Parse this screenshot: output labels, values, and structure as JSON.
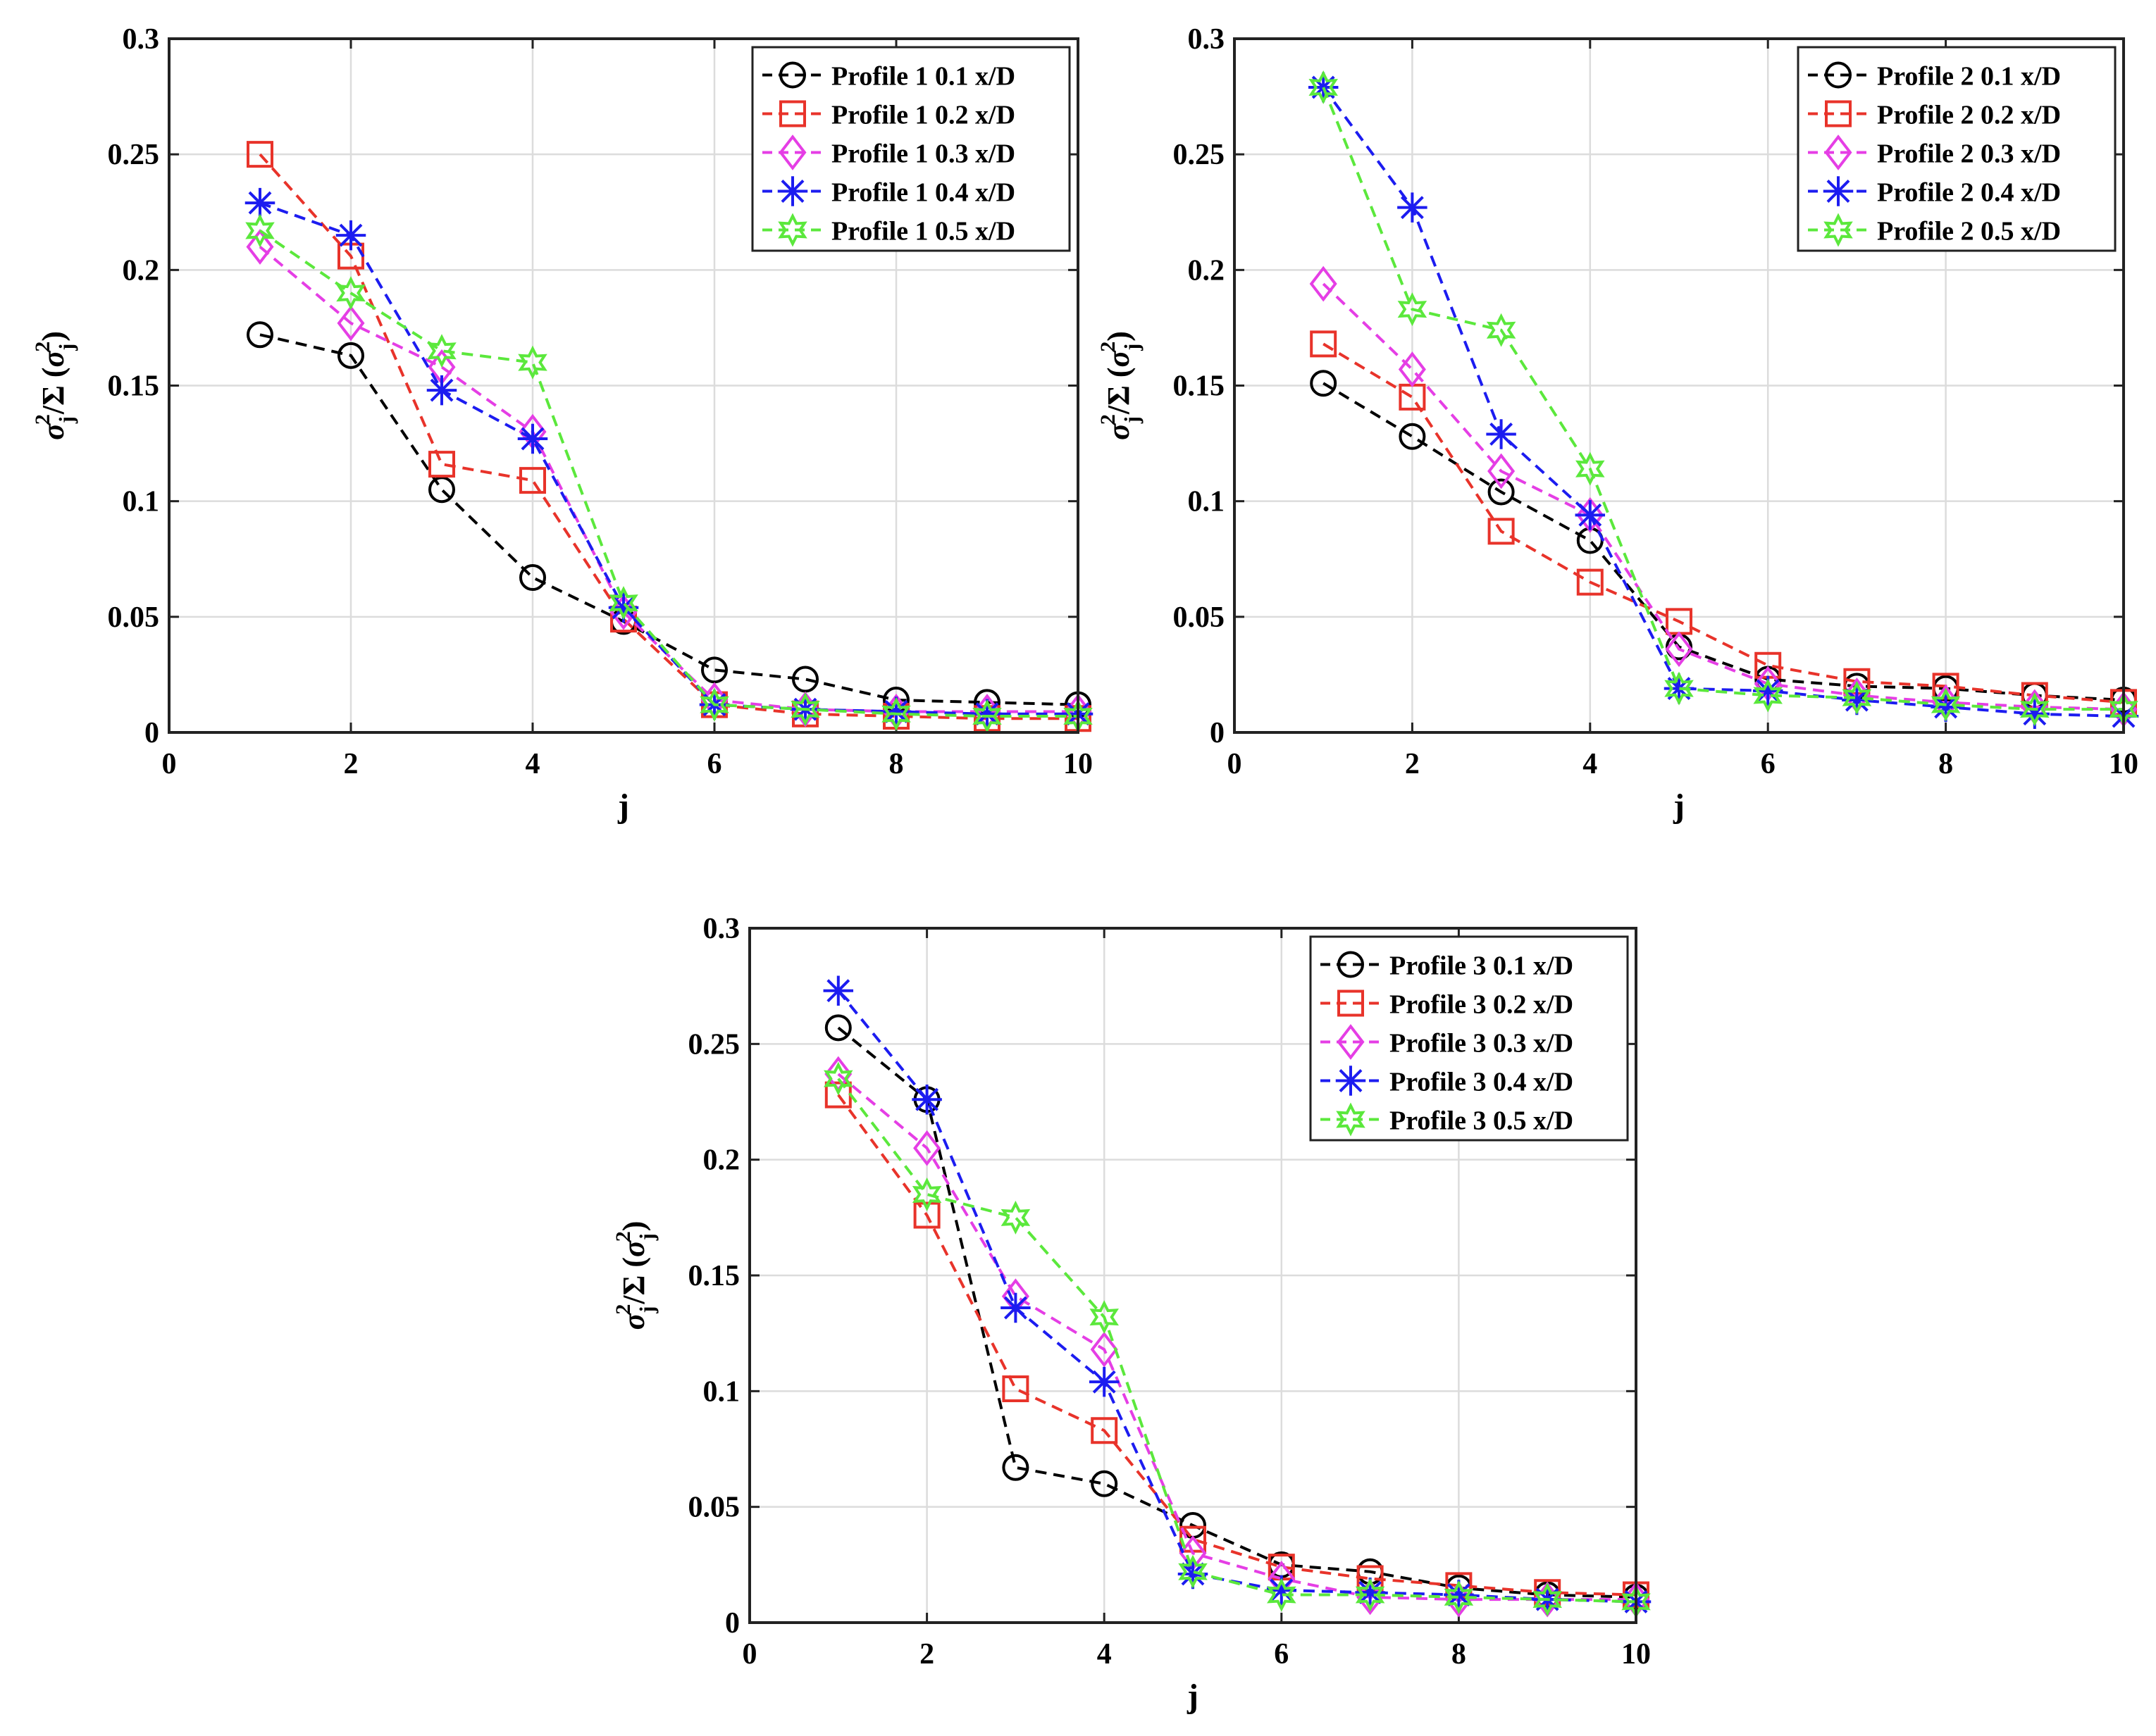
{
  "chart_data": [
    {
      "type": "line",
      "title": "",
      "xlabel": "j",
      "ylabel": "σ_j^2/Σ (σ_j^2)",
      "xlim": [
        0,
        10
      ],
      "ylim": [
        0,
        0.3
      ],
      "xticks": [
        0,
        2,
        4,
        6,
        8,
        10
      ],
      "yticks": [
        0,
        0.05,
        0.1,
        0.15,
        0.2,
        0.25,
        0.3
      ],
      "xtick_labels": [
        "0",
        "2",
        "4",
        "6",
        "8",
        "10"
      ],
      "ytick_labels": [
        "0",
        "0.05",
        "0.1",
        "0.15",
        "0.2",
        "0.25",
        "0.3"
      ],
      "grid": true,
      "legend_position": "top-right",
      "x": [
        1,
        2,
        3,
        4,
        5,
        6,
        7,
        8,
        9,
        10
      ],
      "series": [
        {
          "name": "Profile 1 0.1 x/D",
          "color": "#000000",
          "marker": "circle",
          "values": [
            0.172,
            0.163,
            0.105,
            0.067,
            0.048,
            0.027,
            0.023,
            0.014,
            0.013,
            0.012
          ]
        },
        {
          "name": "Profile 1 0.2 x/D",
          "color": "#e8332a",
          "marker": "square",
          "values": [
            0.25,
            0.206,
            0.116,
            0.109,
            0.049,
            0.012,
            0.008,
            0.007,
            0.006,
            0.006
          ]
        },
        {
          "name": "Profile 1 0.3 x/D",
          "color": "#e53ee5",
          "marker": "diamond",
          "values": [
            0.21,
            0.177,
            0.158,
            0.13,
            0.052,
            0.014,
            0.01,
            0.009,
            0.009,
            0.009
          ]
        },
        {
          "name": "Profile 1 0.4 x/D",
          "color": "#1c1cf0",
          "marker": "asterisk",
          "values": [
            0.229,
            0.215,
            0.148,
            0.127,
            0.054,
            0.012,
            0.01,
            0.009,
            0.008,
            0.008
          ]
        },
        {
          "name": "Profile 1 0.5 x/D",
          "color": "#5be83c",
          "marker": "hexagram",
          "values": [
            0.217,
            0.19,
            0.165,
            0.16,
            0.056,
            0.012,
            0.01,
            0.008,
            0.007,
            0.007
          ]
        }
      ]
    },
    {
      "type": "line",
      "title": "",
      "xlabel": "j",
      "ylabel": "σ_j^2/Σ (σ_j^2)",
      "xlim": [
        0,
        10
      ],
      "ylim": [
        0,
        0.3
      ],
      "xticks": [
        0,
        2,
        4,
        6,
        8,
        10
      ],
      "yticks": [
        0,
        0.05,
        0.1,
        0.15,
        0.2,
        0.25,
        0.3
      ],
      "xtick_labels": [
        "0",
        "2",
        "4",
        "6",
        "8",
        "10"
      ],
      "ytick_labels": [
        "0",
        "0.05",
        "0.1",
        "0.15",
        "0.2",
        "0.25",
        "0.3"
      ],
      "grid": true,
      "legend_position": "top-right",
      "x": [
        1,
        2,
        3,
        4,
        5,
        6,
        7,
        8,
        9,
        10
      ],
      "series": [
        {
          "name": "Profile 2 0.1 x/D",
          "color": "#000000",
          "marker": "circle",
          "values": [
            0.151,
            0.128,
            0.104,
            0.083,
            0.037,
            0.023,
            0.02,
            0.019,
            0.016,
            0.014
          ]
        },
        {
          "name": "Profile 2 0.2 x/D",
          "color": "#e8332a",
          "marker": "square",
          "values": [
            0.168,
            0.145,
            0.087,
            0.065,
            0.048,
            0.029,
            0.022,
            0.02,
            0.016,
            0.013
          ]
        },
        {
          "name": "Profile 2 0.3 x/D",
          "color": "#e53ee5",
          "marker": "diamond",
          "values": [
            0.194,
            0.157,
            0.113,
            0.094,
            0.036,
            0.021,
            0.016,
            0.013,
            0.011,
            0.01
          ]
        },
        {
          "name": "Profile 2 0.4 x/D",
          "color": "#1c1cf0",
          "marker": "asterisk",
          "values": [
            0.279,
            0.227,
            0.129,
            0.094,
            0.019,
            0.018,
            0.014,
            0.011,
            0.008,
            0.007
          ]
        },
        {
          "name": "Profile 2 0.5 x/D",
          "color": "#5be83c",
          "marker": "hexagram",
          "values": [
            0.279,
            0.183,
            0.174,
            0.114,
            0.019,
            0.016,
            0.015,
            0.012,
            0.01,
            0.01
          ]
        }
      ]
    },
    {
      "type": "line",
      "title": "",
      "xlabel": "j",
      "ylabel": "σ_j^2/Σ (σ_j^2)",
      "xlim": [
        0,
        10
      ],
      "ylim": [
        0,
        0.3
      ],
      "xticks": [
        0,
        2,
        4,
        6,
        8,
        10
      ],
      "yticks": [
        0,
        0.05,
        0.1,
        0.15,
        0.2,
        0.25,
        0.3
      ],
      "xtick_labels": [
        "0",
        "2",
        "4",
        "6",
        "8",
        "10"
      ],
      "ytick_labels": [
        "0",
        "0.05",
        "0.1",
        "0.15",
        "0.2",
        "0.25",
        "0.3"
      ],
      "grid": true,
      "legend_position": "top-right",
      "x": [
        1,
        2,
        3,
        4,
        5,
        6,
        7,
        8,
        9,
        10
      ],
      "series": [
        {
          "name": "Profile 3 0.1 x/D",
          "color": "#000000",
          "marker": "circle",
          "values": [
            0.257,
            0.226,
            0.067,
            0.06,
            0.042,
            0.025,
            0.022,
            0.015,
            0.012,
            0.011
          ]
        },
        {
          "name": "Profile 3 0.2 x/D",
          "color": "#e8332a",
          "marker": "square",
          "values": [
            0.228,
            0.176,
            0.101,
            0.083,
            0.036,
            0.024,
            0.019,
            0.016,
            0.013,
            0.012
          ]
        },
        {
          "name": "Profile 3 0.3 x/D",
          "color": "#e53ee5",
          "marker": "diamond",
          "values": [
            0.237,
            0.205,
            0.141,
            0.118,
            0.03,
            0.019,
            0.011,
            0.01,
            0.01,
            0.01
          ]
        },
        {
          "name": "Profile 3 0.4 x/D",
          "color": "#1c1cf0",
          "marker": "asterisk",
          "values": [
            0.273,
            0.226,
            0.136,
            0.104,
            0.021,
            0.014,
            0.013,
            0.012,
            0.01,
            0.009
          ]
        },
        {
          "name": "Profile 3 0.5 x/D",
          "color": "#5be83c",
          "marker": "hexagram",
          "values": [
            0.235,
            0.185,
            0.175,
            0.132,
            0.022,
            0.012,
            0.012,
            0.011,
            0.01,
            0.009
          ]
        }
      ]
    }
  ]
}
